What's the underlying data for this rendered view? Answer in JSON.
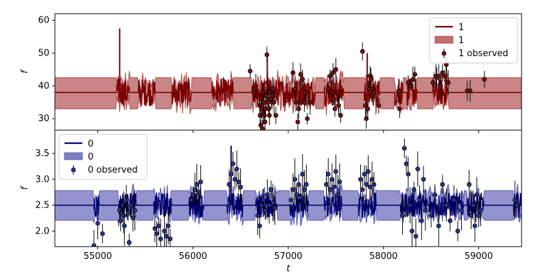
{
  "chart_data": [
    {
      "type": "line",
      "title": "",
      "xlabel": "",
      "ylabel": "f",
      "xlim": [
        54550,
        59450
      ],
      "ylim": [
        26.5,
        62
      ],
      "yticks": [
        30,
        40,
        50,
        60
      ],
      "grid": false,
      "legend_position": "top-right",
      "legend": [
        "1",
        "1",
        "1 observed"
      ],
      "colors": {
        "line": "#7b0000",
        "band": "#b04a4a",
        "band_fill": "#c07070",
        "point": "#7a1010"
      },
      "baseline": 38.0,
      "band": [
        33.0,
        42.5
      ],
      "observed_points": [
        [
          56700,
          34
        ],
        [
          56705,
          31
        ],
        [
          56712,
          28
        ],
        [
          56716,
          36
        ],
        [
          56722,
          33
        ],
        [
          56728,
          27
        ],
        [
          56735,
          38
        ],
        [
          56738,
          32
        ],
        [
          56744,
          35
        ],
        [
          56750,
          31
        ],
        [
          56756,
          29
        ],
        [
          56762,
          33
        ],
        [
          56768,
          37
        ],
        [
          56776,
          49.5
        ],
        [
          56782,
          41
        ],
        [
          56790,
          35
        ],
        [
          56796,
          33
        ],
        [
          56802,
          31
        ],
        [
          56808,
          38
        ],
        [
          56820,
          36
        ],
        [
          56835,
          39
        ],
        [
          56850,
          35
        ],
        [
          56870,
          31
        ],
        [
          56600,
          44.5
        ],
        [
          56640,
          38
        ],
        [
          56660,
          40
        ],
        [
          57050,
          44
        ],
        [
          57070,
          39
        ],
        [
          57080,
          35
        ],
        [
          57100,
          29
        ],
        [
          57110,
          33
        ],
        [
          57130,
          43.5
        ],
        [
          57150,
          42
        ],
        [
          57170,
          35
        ],
        [
          57180,
          38
        ],
        [
          57200,
          30
        ],
        [
          57230,
          35
        ],
        [
          57420,
          39
        ],
        [
          57440,
          43
        ],
        [
          57460,
          38
        ],
        [
          57470,
          44
        ],
        [
          57480,
          36
        ],
        [
          57490,
          33
        ],
        [
          57500,
          45
        ],
        [
          57520,
          38
        ],
        [
          57530,
          34
        ],
        [
          57550,
          31
        ],
        [
          57780,
          50.5
        ],
        [
          57810,
          34
        ],
        [
          57820,
          30
        ],
        [
          57835,
          33
        ],
        [
          57850,
          39
        ],
        [
          57860,
          43
        ],
        [
          57870,
          42
        ],
        [
          57880,
          37
        ],
        [
          57890,
          39
        ],
        [
          57900,
          38
        ],
        [
          57950,
          34
        ],
        [
          58160,
          38.5
        ],
        [
          58170,
          33
        ],
        [
          58260,
          41
        ],
        [
          58290,
          40
        ],
        [
          58310,
          42
        ],
        [
          58330,
          43.5
        ],
        [
          58520,
          41
        ],
        [
          58550,
          43
        ],
        [
          58560,
          42.5
        ],
        [
          58580,
          43
        ],
        [
          58600,
          40
        ],
        [
          58620,
          44
        ],
        [
          58640,
          43
        ],
        [
          58660,
          46.5
        ],
        [
          58680,
          41
        ],
        [
          58880,
          38.5
        ],
        [
          58910,
          38.5
        ],
        [
          59060,
          42
        ]
      ],
      "spikes": [
        [
          55230,
          57.5
        ],
        [
          56780,
          50
        ],
        [
          57830,
          50
        ],
        [
          58660,
          47
        ]
      ]
    },
    {
      "type": "line",
      "title": "",
      "xlabel": "t",
      "ylabel": "f",
      "xlim": [
        54550,
        59450
      ],
      "ylim": [
        1.7,
        3.95
      ],
      "yticks": [
        2.0,
        2.5,
        3.0,
        3.5
      ],
      "ytick_labels": [
        "2.0",
        "2.5",
        "3.0",
        "3.5"
      ],
      "xticks": [
        55000,
        56000,
        57000,
        58000,
        59000
      ],
      "xtick_labels": [
        "55000",
        "56000",
        "57000",
        "58000",
        "59000"
      ],
      "grid": false,
      "legend_position": "top-left",
      "legend": [
        "0",
        "0",
        "0 observed"
      ],
      "colors": {
        "line": "#00006a",
        "band": "#5a5ab0",
        "band_fill": "#8080c8",
        "point": "#2a3590"
      },
      "baseline": 2.5,
      "band": [
        2.21,
        2.78
      ],
      "observed_points": [
        [
          54960,
          1.72
        ],
        [
          55000,
          2.15
        ],
        [
          55050,
          1.95
        ],
        [
          55230,
          2.4
        ],
        [
          55240,
          2.2
        ],
        [
          55260,
          2.5
        ],
        [
          55270,
          2.3
        ],
        [
          55280,
          2.1
        ],
        [
          55300,
          2.6
        ],
        [
          55320,
          2.35
        ],
        [
          55330,
          1.78
        ],
        [
          55350,
          2.5
        ],
        [
          55370,
          2.25
        ],
        [
          55390,
          2.4
        ],
        [
          55600,
          2.05
        ],
        [
          55620,
          1.95
        ],
        [
          55640,
          2.1
        ],
        [
          55660,
          1.85
        ],
        [
          55700,
          2.0
        ],
        [
          55720,
          1.9
        ],
        [
          55740,
          2.1
        ],
        [
          55760,
          1.85
        ],
        [
          55980,
          2.6
        ],
        [
          56000,
          2.7
        ],
        [
          56020,
          2.8
        ],
        [
          56040,
          2.9
        ],
        [
          56060,
          2.75
        ],
        [
          56080,
          2.95
        ],
        [
          56380,
          2.9
        ],
        [
          56400,
          3.1
        ],
        [
          56420,
          3.3
        ],
        [
          56440,
          3.0
        ],
        [
          56460,
          3.2
        ],
        [
          56480,
          2.95
        ],
        [
          56500,
          2.85
        ],
        [
          56680,
          2.3
        ],
        [
          56700,
          2.1
        ],
        [
          56720,
          2.5
        ],
        [
          56740,
          2.6
        ],
        [
          56760,
          2.4
        ],
        [
          56780,
          2.7
        ],
        [
          56800,
          2.5
        ],
        [
          56820,
          2.8
        ],
        [
          56840,
          2.55
        ],
        [
          56860,
          2.45
        ],
        [
          57030,
          2.6
        ],
        [
          57050,
          2.8
        ],
        [
          57070,
          3.0
        ],
        [
          57090,
          2.7
        ],
        [
          57110,
          2.9
        ],
        [
          57130,
          2.65
        ],
        [
          57150,
          3.1
        ],
        [
          57170,
          2.8
        ],
        [
          57190,
          2.9
        ],
        [
          57400,
          2.9
        ],
        [
          57420,
          3.1
        ],
        [
          57440,
          2.8
        ],
        [
          57460,
          3.0
        ],
        [
          57480,
          2.85
        ],
        [
          57500,
          3.15
        ],
        [
          57520,
          2.7
        ],
        [
          57540,
          2.95
        ],
        [
          57760,
          3.0
        ],
        [
          57780,
          2.8
        ],
        [
          57800,
          3.1
        ],
        [
          57820,
          2.9
        ],
        [
          57840,
          3.15
        ],
        [
          57860,
          2.85
        ],
        [
          57880,
          3.0
        ],
        [
          57900,
          2.9
        ],
        [
          58200,
          2.3
        ],
        [
          58220,
          3.6
        ],
        [
          58240,
          3.3
        ],
        [
          58260,
          3.1
        ],
        [
          58280,
          2.5
        ],
        [
          58300,
          2.0
        ],
        [
          58320,
          2.8
        ],
        [
          58340,
          1.9
        ],
        [
          58360,
          3.2
        ],
        [
          58380,
          2.6
        ],
        [
          58400,
          2.2
        ],
        [
          58420,
          3.0
        ],
        [
          58440,
          2.4
        ],
        [
          58500,
          2.3
        ],
        [
          58540,
          2.7
        ],
        [
          58580,
          2.1
        ],
        [
          58620,
          2.9
        ],
        [
          58660,
          2.5
        ],
        [
          58700,
          2.2
        ],
        [
          58740,
          2.6
        ],
        [
          58780,
          2.0
        ],
        [
          58820,
          2.4
        ],
        [
          58900,
          2.9
        ],
        [
          58920,
          2.3
        ],
        [
          58940,
          2.5
        ],
        [
          58960,
          2.1
        ],
        [
          58980,
          2.7
        ],
        [
          59000,
          2.3
        ],
        [
          59020,
          2.4
        ],
        [
          59380,
          2.6
        ],
        [
          59400,
          2.5
        ]
      ],
      "spikes": [
        [
          56400,
          3.65
        ]
      ]
    }
  ]
}
